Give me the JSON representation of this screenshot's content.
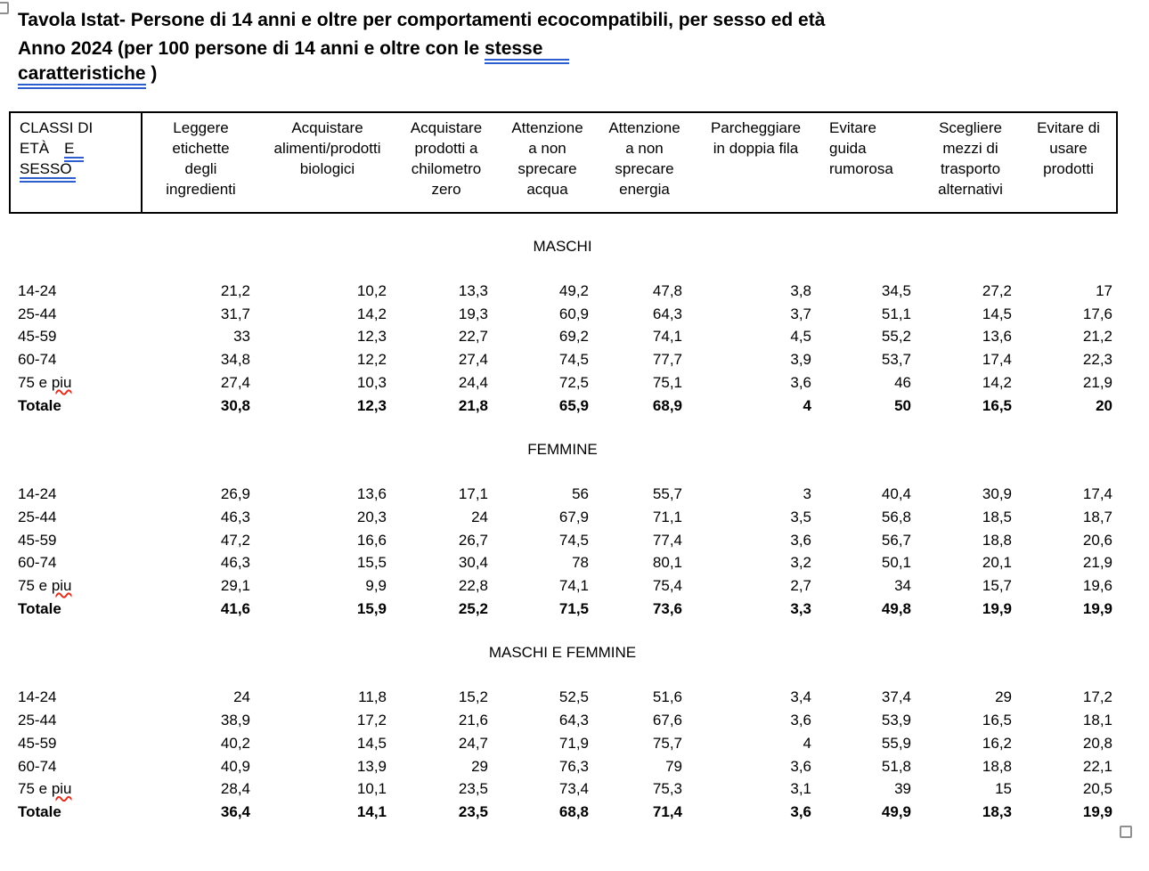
{
  "colors": {
    "text": "#000000",
    "grammar_underline": "#2d5ecf",
    "spell_underline": "#e0301e",
    "table_border": "#000000",
    "handle_border": "#8f8f8f"
  },
  "selection_handles": {
    "top_left": true,
    "bottom_right": true
  },
  "chart_data": {
    "type": "table",
    "title": "Tavola Istat- Persone di 14 anni e oltre per comportamenti ecocompatibili, per sesso ed età",
    "subtitle": "Anno 2024 (per 100 persone di 14 anni e oltre con le stesse caratteristiche )",
    "subtitle_parts": {
      "plain": "Anno 2024 (per 100 persone di 14 anni e oltre con le ",
      "marked1": "stesse",
      "marked2": "caratteristiche",
      "suffix": " )"
    },
    "corner": {
      "label": "CLASSI DI ETÀ E SESSO",
      "line1": "CLASSI DI",
      "line2_plain": "ETÀ",
      "line2_marked": "E",
      "line3_marked": "SESSO"
    },
    "columns": [
      {
        "label": "Leggere etichette degli ingredienti",
        "lines": [
          "Leggere",
          "etichette",
          "degli",
          "ingredienti"
        ],
        "align": "center"
      },
      {
        "label": "Acquistare alimenti/prodotti biologici",
        "lines": [
          "Acquistare",
          "alimenti/prodotti",
          "biologici"
        ],
        "align": "center"
      },
      {
        "label": "Acquistare prodotti a chilometro zero",
        "lines": [
          "Acquistare",
          "prodotti a",
          "chilometro",
          "zero"
        ],
        "align": "center"
      },
      {
        "label": "Attenzione a non sprecare acqua",
        "lines": [
          "Attenzione",
          "a non",
          "sprecare",
          "acqua"
        ],
        "align": "center"
      },
      {
        "label": "Attenzione a non sprecare energia",
        "lines": [
          "Attenzione",
          "a non",
          "sprecare",
          "energia"
        ],
        "align": "center"
      },
      {
        "label": "Parcheggiare in doppia fila",
        "lines": [
          "Parcheggiare",
          "in doppia fila"
        ],
        "align": "center"
      },
      {
        "label": "Evitare guida rumorosa",
        "lines": [
          "Evitare",
          "guida",
          "rumorosa"
        ],
        "align": "left"
      },
      {
        "label": "Scegliere mezzi di trasporto alternativi",
        "lines": [
          "Scegliere",
          "mezzi di",
          "trasporto",
          "alternativi"
        ],
        "align": "center"
      },
      {
        "label": "Evitare di usare prodotti",
        "lines": [
          "Evitare di",
          "usare",
          "prodotti"
        ],
        "align": "center"
      }
    ],
    "sections": [
      {
        "title": "MASCHI",
        "rows": [
          {
            "label_plain": "14-24",
            "values": [
              "21,2",
              "10,2",
              "13,3",
              "49,2",
              "47,8",
              "3,8",
              "34,5",
              "27,2",
              "17"
            ]
          },
          {
            "label_plain": "25-44",
            "values": [
              "31,7",
              "14,2",
              "19,3",
              "60,9",
              "64,3",
              "3,7",
              "51,1",
              "14,5",
              "17,6"
            ]
          },
          {
            "label_plain": "45-59",
            "values": [
              "33",
              "12,3",
              "22,7",
              "69,2",
              "74,1",
              "4,5",
              "55,2",
              "13,6",
              "21,2"
            ]
          },
          {
            "label_plain": "60-74",
            "values": [
              "34,8",
              "12,2",
              "27,4",
              "74,5",
              "77,7",
              "3,9",
              "53,7",
              "17,4",
              "22,3"
            ]
          },
          {
            "label_plain": "75 e ",
            "label_marked": "piu",
            "values": [
              "27,4",
              "10,3",
              "24,4",
              "72,5",
              "75,1",
              "3,6",
              "46",
              "14,2",
              "21,9"
            ]
          },
          {
            "label_plain": "Totale",
            "bold": true,
            "values": [
              "30,8",
              "12,3",
              "21,8",
              "65,9",
              "68,9",
              "4",
              "50",
              "16,5",
              "20"
            ]
          }
        ]
      },
      {
        "title": "FEMMINE",
        "rows": [
          {
            "label_plain": "14-24",
            "values": [
              "26,9",
              "13,6",
              "17,1",
              "56",
              "55,7",
              "3",
              "40,4",
              "30,9",
              "17,4"
            ]
          },
          {
            "label_plain": "25-44",
            "values": [
              "46,3",
              "20,3",
              "24",
              "67,9",
              "71,1",
              "3,5",
              "56,8",
              "18,5",
              "18,7"
            ]
          },
          {
            "label_plain": "45-59",
            "values": [
              "47,2",
              "16,6",
              "26,7",
              "74,5",
              "77,4",
              "3,6",
              "56,7",
              "18,8",
              "20,6"
            ]
          },
          {
            "label_plain": "60-74",
            "values": [
              "46,3",
              "15,5",
              "30,4",
              "78",
              "80,1",
              "3,2",
              "50,1",
              "20,1",
              "21,9"
            ]
          },
          {
            "label_plain": "75 e ",
            "label_marked": "piu",
            "values": [
              "29,1",
              "9,9",
              "22,8",
              "74,1",
              "75,4",
              "2,7",
              "34",
              "15,7",
              "19,6"
            ]
          },
          {
            "label_plain": "Totale",
            "bold": true,
            "values": [
              "41,6",
              "15,9",
              "25,2",
              "71,5",
              "73,6",
              "3,3",
              "49,8",
              "19,9",
              "19,9"
            ]
          }
        ]
      },
      {
        "title": "MASCHI E FEMMINE",
        "rows": [
          {
            "label_plain": "14-24",
            "values": [
              "24",
              "11,8",
              "15,2",
              "52,5",
              "51,6",
              "3,4",
              "37,4",
              "29",
              "17,2"
            ]
          },
          {
            "label_plain": "25-44",
            "values": [
              "38,9",
              "17,2",
              "21,6",
              "64,3",
              "67,6",
              "3,6",
              "53,9",
              "16,5",
              "18,1"
            ]
          },
          {
            "label_plain": "45-59",
            "values": [
              "40,2",
              "14,5",
              "24,7",
              "71,9",
              "75,7",
              "4",
              "55,9",
              "16,2",
              "20,8"
            ]
          },
          {
            "label_plain": "60-74",
            "values": [
              "40,9",
              "13,9",
              "29",
              "76,3",
              "79",
              "3,6",
              "51,8",
              "18,8",
              "22,1"
            ]
          },
          {
            "label_plain": "75 e ",
            "label_marked": "piu",
            "values": [
              "28,4",
              "10,1",
              "23,5",
              "73,4",
              "75,3",
              "3,1",
              "39",
              "15",
              "20,5"
            ]
          },
          {
            "label_plain": "Totale",
            "bold": true,
            "values": [
              "36,4",
              "14,1",
              "23,5",
              "68,8",
              "71,4",
              "3,6",
              "49,9",
              "18,3",
              "19,9"
            ]
          }
        ]
      }
    ]
  }
}
